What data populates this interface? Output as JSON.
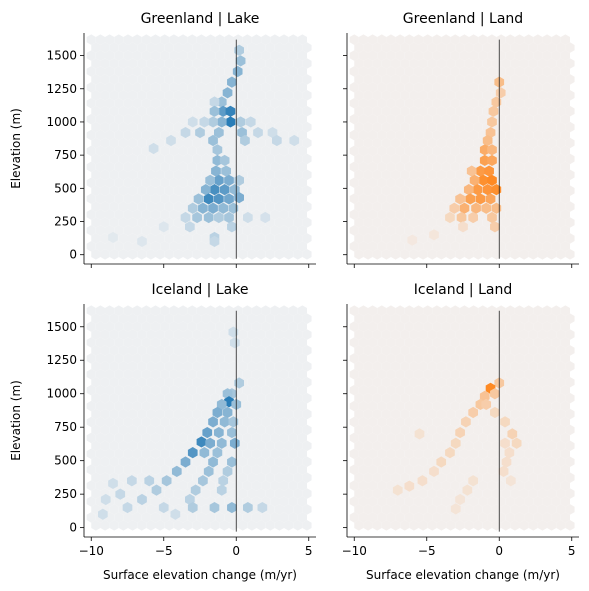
{
  "chart_data": [
    {
      "type": "hexbin",
      "title": "Greenland | Lake",
      "color": "#1f77b4",
      "background_color": "#eef0f2",
      "ylabel": "Elevation (m)",
      "xlabel": "",
      "xlim": [
        -10.5,
        5.5
      ],
      "ylim": [
        -70,
        1670
      ],
      "xticks": [
        -10,
        -5,
        0,
        5
      ],
      "xtick_labels": [
        "",
        "",
        "",
        ""
      ],
      "yticks": [
        0,
        250,
        500,
        750,
        1000,
        1250,
        1500
      ],
      "ytick_labels": [
        "0",
        "250",
        "500",
        "750",
        "1000",
        "1250",
        "1500"
      ],
      "vline_x": 0,
      "bins": [
        {
          "x": 0.2,
          "y": 1540,
          "w": 0.3
        },
        {
          "x": 0.3,
          "y": 1460,
          "w": 0.4
        },
        {
          "x": 0.1,
          "y": 1380,
          "w": 0.5
        },
        {
          "x": -0.3,
          "y": 1300,
          "w": 0.5
        },
        {
          "x": -0.6,
          "y": 1220,
          "w": 0.5
        },
        {
          "x": -1.0,
          "y": 1150,
          "w": 0.4
        },
        {
          "x": -1.5,
          "y": 1150,
          "w": 0.2
        },
        {
          "x": -0.9,
          "y": 1080,
          "w": 0.7
        },
        {
          "x": -0.4,
          "y": 1080,
          "w": 0.9
        },
        {
          "x": -1.5,
          "y": 1080,
          "w": 0.4
        },
        {
          "x": -0.4,
          "y": 1000,
          "w": 0.95
        },
        {
          "x": -1.0,
          "y": 1000,
          "w": 0.5
        },
        {
          "x": -1.6,
          "y": 1000,
          "w": 0.3
        },
        {
          "x": -2.2,
          "y": 1000,
          "w": 0.2
        },
        {
          "x": -3.0,
          "y": 1000,
          "w": 0.15
        },
        {
          "x": 0.3,
          "y": 1000,
          "w": 0.3
        },
        {
          "x": 1.0,
          "y": 1000,
          "w": 0.2
        },
        {
          "x": -3.5,
          "y": 920,
          "w": 0.2
        },
        {
          "x": -2.5,
          "y": 920,
          "w": 0.3
        },
        {
          "x": -1.2,
          "y": 920,
          "w": 0.4
        },
        {
          "x": 0.4,
          "y": 920,
          "w": 0.4
        },
        {
          "x": 1.5,
          "y": 920,
          "w": 0.2
        },
        {
          "x": 2.5,
          "y": 920,
          "w": 0.15
        },
        {
          "x": -4.5,
          "y": 860,
          "w": 0.15
        },
        {
          "x": -1.6,
          "y": 860,
          "w": 0.4
        },
        {
          "x": 0.6,
          "y": 860,
          "w": 0.3
        },
        {
          "x": 2.8,
          "y": 860,
          "w": 0.2
        },
        {
          "x": 4.0,
          "y": 860,
          "w": 0.15
        },
        {
          "x": -5.7,
          "y": 800,
          "w": 0.15
        },
        {
          "x": -1.3,
          "y": 790,
          "w": 0.35
        },
        {
          "x": -1.3,
          "y": 710,
          "w": 0.45
        },
        {
          "x": -0.8,
          "y": 710,
          "w": 0.35
        },
        {
          "x": -1.4,
          "y": 630,
          "w": 0.5
        },
        {
          "x": -0.7,
          "y": 630,
          "w": 0.4
        },
        {
          "x": -1.2,
          "y": 560,
          "w": 0.65
        },
        {
          "x": -0.5,
          "y": 560,
          "w": 0.55
        },
        {
          "x": -1.8,
          "y": 560,
          "w": 0.4
        },
        {
          "x": 0.2,
          "y": 560,
          "w": 0.3
        },
        {
          "x": -1.5,
          "y": 490,
          "w": 0.8
        },
        {
          "x": -0.8,
          "y": 490,
          "w": 0.7
        },
        {
          "x": -2.1,
          "y": 490,
          "w": 0.5
        },
        {
          "x": -0.1,
          "y": 490,
          "w": 0.45
        },
        {
          "x": -1.2,
          "y": 420,
          "w": 0.75
        },
        {
          "x": -1.9,
          "y": 420,
          "w": 0.85
        },
        {
          "x": -0.5,
          "y": 420,
          "w": 0.6
        },
        {
          "x": -2.6,
          "y": 420,
          "w": 0.4
        },
        {
          "x": 0.2,
          "y": 430,
          "w": 0.55
        },
        {
          "x": -1.6,
          "y": 350,
          "w": 0.55
        },
        {
          "x": -2.3,
          "y": 350,
          "w": 0.5
        },
        {
          "x": -0.9,
          "y": 350,
          "w": 0.45
        },
        {
          "x": -3.0,
          "y": 350,
          "w": 0.3
        },
        {
          "x": -0.2,
          "y": 350,
          "w": 0.4
        },
        {
          "x": -2.7,
          "y": 280,
          "w": 0.35
        },
        {
          "x": -1.9,
          "y": 280,
          "w": 0.4
        },
        {
          "x": -1.2,
          "y": 280,
          "w": 0.3
        },
        {
          "x": -0.5,
          "y": 280,
          "w": 0.35
        },
        {
          "x": -3.5,
          "y": 280,
          "w": 0.2
        },
        {
          "x": 0.8,
          "y": 280,
          "w": 0.15
        },
        {
          "x": 2.0,
          "y": 280,
          "w": 0.12
        },
        {
          "x": -3.2,
          "y": 210,
          "w": 0.2
        },
        {
          "x": -0.3,
          "y": 210,
          "w": 0.25
        },
        {
          "x": -1.5,
          "y": 130,
          "w": 0.25
        },
        {
          "x": -1.5,
          "y": 100,
          "w": 0.2
        },
        {
          "x": -6.5,
          "y": 100,
          "w": 0.08
        },
        {
          "x": -8.5,
          "y": 130,
          "w": 0.06
        },
        {
          "x": -5.0,
          "y": 210,
          "w": 0.08
        }
      ]
    },
    {
      "type": "hexbin",
      "title": "Greenland | Land",
      "color": "#ff7f0e",
      "background_color": "#f3efed",
      "ylabel": "",
      "xlabel": "",
      "xlim": [
        -10.5,
        5.5
      ],
      "ylim": [
        -70,
        1670
      ],
      "xticks": [
        -10,
        -5,
        0,
        5
      ],
      "xtick_labels": [
        "",
        "",
        "",
        ""
      ],
      "yticks": [
        0,
        250,
        500,
        750,
        1000,
        1250,
        1500
      ],
      "ytick_labels": [
        "",
        "",
        "",
        "",
        "",
        "",
        ""
      ],
      "vline_x": 0,
      "bins": [
        {
          "x": 0.0,
          "y": 1300,
          "w": 0.45
        },
        {
          "x": 0.1,
          "y": 1220,
          "w": 0.3
        },
        {
          "x": -0.2,
          "y": 1150,
          "w": 0.35
        },
        {
          "x": -0.4,
          "y": 1080,
          "w": 0.35
        },
        {
          "x": -0.5,
          "y": 1000,
          "w": 0.35
        },
        {
          "x": -0.6,
          "y": 920,
          "w": 0.4
        },
        {
          "x": -0.8,
          "y": 860,
          "w": 0.45
        },
        {
          "x": -1.0,
          "y": 790,
          "w": 0.6
        },
        {
          "x": -0.5,
          "y": 790,
          "w": 0.5
        },
        {
          "x": -1.0,
          "y": 710,
          "w": 0.7
        },
        {
          "x": -0.5,
          "y": 710,
          "w": 0.65
        },
        {
          "x": -1.3,
          "y": 630,
          "w": 0.75
        },
        {
          "x": -0.7,
          "y": 630,
          "w": 0.8
        },
        {
          "x": -1.9,
          "y": 630,
          "w": 0.4
        },
        {
          "x": -1.1,
          "y": 560,
          "w": 0.85
        },
        {
          "x": -0.5,
          "y": 560,
          "w": 0.9
        },
        {
          "x": -1.7,
          "y": 560,
          "w": 0.55
        },
        {
          "x": -1.5,
          "y": 490,
          "w": 0.75
        },
        {
          "x": -0.8,
          "y": 490,
          "w": 0.8
        },
        {
          "x": -0.2,
          "y": 490,
          "w": 0.85
        },
        {
          "x": -2.1,
          "y": 490,
          "w": 0.5
        },
        {
          "x": -2.0,
          "y": 420,
          "w": 0.7
        },
        {
          "x": -1.3,
          "y": 420,
          "w": 0.75
        },
        {
          "x": -0.6,
          "y": 420,
          "w": 0.65
        },
        {
          "x": -2.7,
          "y": 420,
          "w": 0.4
        },
        {
          "x": -2.4,
          "y": 350,
          "w": 0.55
        },
        {
          "x": -1.6,
          "y": 350,
          "w": 0.5
        },
        {
          "x": -0.9,
          "y": 350,
          "w": 0.45
        },
        {
          "x": -0.2,
          "y": 350,
          "w": 0.45
        },
        {
          "x": -3.1,
          "y": 350,
          "w": 0.3
        },
        {
          "x": -2.6,
          "y": 280,
          "w": 0.35
        },
        {
          "x": -1.8,
          "y": 280,
          "w": 0.3
        },
        {
          "x": -0.5,
          "y": 280,
          "w": 0.35
        },
        {
          "x": -3.4,
          "y": 280,
          "w": 0.2
        },
        {
          "x": -0.3,
          "y": 210,
          "w": 0.3
        },
        {
          "x": -2.5,
          "y": 210,
          "w": 0.15
        },
        {
          "x": -4.5,
          "y": 150,
          "w": 0.08
        },
        {
          "x": -6.0,
          "y": 110,
          "w": 0.06
        }
      ]
    },
    {
      "type": "hexbin",
      "title": "Iceland | Lake",
      "color": "#1f77b4",
      "background_color": "#eef0f2",
      "ylabel": "Elevation (m)",
      "xlabel": "Surface elevation change (m/yr)",
      "xlim": [
        -10.5,
        5.5
      ],
      "ylim": [
        -70,
        1670
      ],
      "xticks": [
        -10,
        -5,
        0,
        5
      ],
      "xtick_labels": [
        "−10",
        "−5",
        "0",
        "5"
      ],
      "yticks": [
        0,
        250,
        500,
        750,
        1000,
        1250,
        1500
      ],
      "ytick_labels": [
        "0",
        "250",
        "500",
        "750",
        "1000",
        "1250",
        "1500"
      ],
      "vline_x": 0,
      "bins": [
        {
          "x": -0.2,
          "y": 1460,
          "w": 0.15
        },
        {
          "x": -0.1,
          "y": 1380,
          "w": 0.15
        },
        {
          "x": 0.2,
          "y": 1080,
          "w": 0.3
        },
        {
          "x": -0.3,
          "y": 1000,
          "w": 0.35
        },
        {
          "x": -0.6,
          "y": 1000,
          "w": 0.4
        },
        {
          "x": -0.5,
          "y": 940,
          "w": 0.95
        },
        {
          "x": -1.0,
          "y": 920,
          "w": 0.45
        },
        {
          "x": 0.0,
          "y": 920,
          "w": 0.4
        },
        {
          "x": -1.3,
          "y": 860,
          "w": 0.55
        },
        {
          "x": -0.6,
          "y": 860,
          "w": 0.5
        },
        {
          "x": -1.6,
          "y": 790,
          "w": 0.55
        },
        {
          "x": -0.8,
          "y": 790,
          "w": 0.45
        },
        {
          "x": -0.2,
          "y": 790,
          "w": 0.35
        },
        {
          "x": -2.0,
          "y": 710,
          "w": 0.65
        },
        {
          "x": -1.2,
          "y": 710,
          "w": 0.5
        },
        {
          "x": -0.3,
          "y": 710,
          "w": 0.4
        },
        {
          "x": -2.4,
          "y": 640,
          "w": 0.85
        },
        {
          "x": -1.8,
          "y": 630,
          "w": 0.55
        },
        {
          "x": -1.0,
          "y": 630,
          "w": 0.45
        },
        {
          "x": -0.1,
          "y": 630,
          "w": 0.55
        },
        {
          "x": -3.0,
          "y": 560,
          "w": 0.75
        },
        {
          "x": -2.2,
          "y": 560,
          "w": 0.45
        },
        {
          "x": -1.3,
          "y": 560,
          "w": 0.4
        },
        {
          "x": -3.5,
          "y": 490,
          "w": 0.55
        },
        {
          "x": -1.6,
          "y": 490,
          "w": 0.45
        },
        {
          "x": -0.3,
          "y": 490,
          "w": 0.4
        },
        {
          "x": -4.1,
          "y": 420,
          "w": 0.45
        },
        {
          "x": -1.9,
          "y": 420,
          "w": 0.4
        },
        {
          "x": -0.6,
          "y": 420,
          "w": 0.3
        },
        {
          "x": -4.8,
          "y": 350,
          "w": 0.35
        },
        {
          "x": -2.3,
          "y": 350,
          "w": 0.35
        },
        {
          "x": -0.9,
          "y": 350,
          "w": 0.25
        },
        {
          "x": -6.0,
          "y": 350,
          "w": 0.25
        },
        {
          "x": -7.2,
          "y": 350,
          "w": 0.2
        },
        {
          "x": -8.5,
          "y": 330,
          "w": 0.15
        },
        {
          "x": -5.5,
          "y": 280,
          "w": 0.3
        },
        {
          "x": -2.8,
          "y": 280,
          "w": 0.3
        },
        {
          "x": -1.0,
          "y": 280,
          "w": 0.25
        },
        {
          "x": -8.0,
          "y": 250,
          "w": 0.2
        },
        {
          "x": -6.5,
          "y": 210,
          "w": 0.25
        },
        {
          "x": -3.2,
          "y": 210,
          "w": 0.25
        },
        {
          "x": -9.0,
          "y": 210,
          "w": 0.15
        },
        {
          "x": -7.5,
          "y": 150,
          "w": 0.2
        },
        {
          "x": -5.0,
          "y": 150,
          "w": 0.2
        },
        {
          "x": -3.0,
          "y": 150,
          "w": 0.3
        },
        {
          "x": -1.5,
          "y": 150,
          "w": 0.35
        },
        {
          "x": -0.3,
          "y": 150,
          "w": 0.45
        },
        {
          "x": 0.8,
          "y": 150,
          "w": 0.3
        },
        {
          "x": 1.8,
          "y": 150,
          "w": 0.2
        },
        {
          "x": -9.2,
          "y": 100,
          "w": 0.15
        },
        {
          "x": -4.2,
          "y": 100,
          "w": 0.15
        }
      ]
    },
    {
      "type": "hexbin",
      "title": "Iceland | Land",
      "color": "#ff7f0e",
      "background_color": "#f3efed",
      "ylabel": "",
      "xlabel": "Surface elevation change (m/yr)",
      "xlim": [
        -10.5,
        5.5
      ],
      "ylim": [
        -70,
        1670
      ],
      "xticks": [
        -10,
        -5,
        0,
        5
      ],
      "xtick_labels": [
        "−10",
        "−5",
        "0",
        "5"
      ],
      "yticks": [
        0,
        250,
        500,
        750,
        1000,
        1250,
        1500
      ],
      "ytick_labels": [
        "",
        "",
        "",
        "",
        "",
        "",
        ""
      ],
      "vline_x": 0,
      "bins": [
        {
          "x": 0.0,
          "y": 1080,
          "w": 0.35
        },
        {
          "x": -0.6,
          "y": 1040,
          "w": 0.9
        },
        {
          "x": -0.3,
          "y": 1000,
          "w": 0.35
        },
        {
          "x": -1.0,
          "y": 980,
          "w": 0.4
        },
        {
          "x": -1.3,
          "y": 920,
          "w": 0.35
        },
        {
          "x": -0.9,
          "y": 920,
          "w": 0.3
        },
        {
          "x": -1.8,
          "y": 860,
          "w": 0.3
        },
        {
          "x": -0.3,
          "y": 860,
          "w": 0.2
        },
        {
          "x": -2.3,
          "y": 790,
          "w": 0.25
        },
        {
          "x": 0.4,
          "y": 790,
          "w": 0.2
        },
        {
          "x": -2.7,
          "y": 710,
          "w": 0.25
        },
        {
          "x": 0.9,
          "y": 700,
          "w": 0.25
        },
        {
          "x": -5.5,
          "y": 700,
          "w": 0.12
        },
        {
          "x": -3.0,
          "y": 630,
          "w": 0.2
        },
        {
          "x": 1.2,
          "y": 630,
          "w": 0.2
        },
        {
          "x": 0.4,
          "y": 630,
          "w": 0.15
        },
        {
          "x": -3.4,
          "y": 560,
          "w": 0.2
        },
        {
          "x": 0.7,
          "y": 560,
          "w": 0.15
        },
        {
          "x": -4.0,
          "y": 490,
          "w": 0.2
        },
        {
          "x": 0.5,
          "y": 490,
          "w": 0.15
        },
        {
          "x": -4.5,
          "y": 420,
          "w": 0.15
        },
        {
          "x": 0.3,
          "y": 420,
          "w": 0.15
        },
        {
          "x": -5.3,
          "y": 350,
          "w": 0.15
        },
        {
          "x": -1.8,
          "y": 350,
          "w": 0.12
        },
        {
          "x": -6.2,
          "y": 310,
          "w": 0.15
        },
        {
          "x": -7.0,
          "y": 280,
          "w": 0.12
        },
        {
          "x": -2.2,
          "y": 280,
          "w": 0.12
        },
        {
          "x": -2.7,
          "y": 210,
          "w": 0.1
        },
        {
          "x": -3.0,
          "y": 140,
          "w": 0.1
        },
        {
          "x": 0.8,
          "y": 350,
          "w": 0.1
        }
      ]
    }
  ]
}
